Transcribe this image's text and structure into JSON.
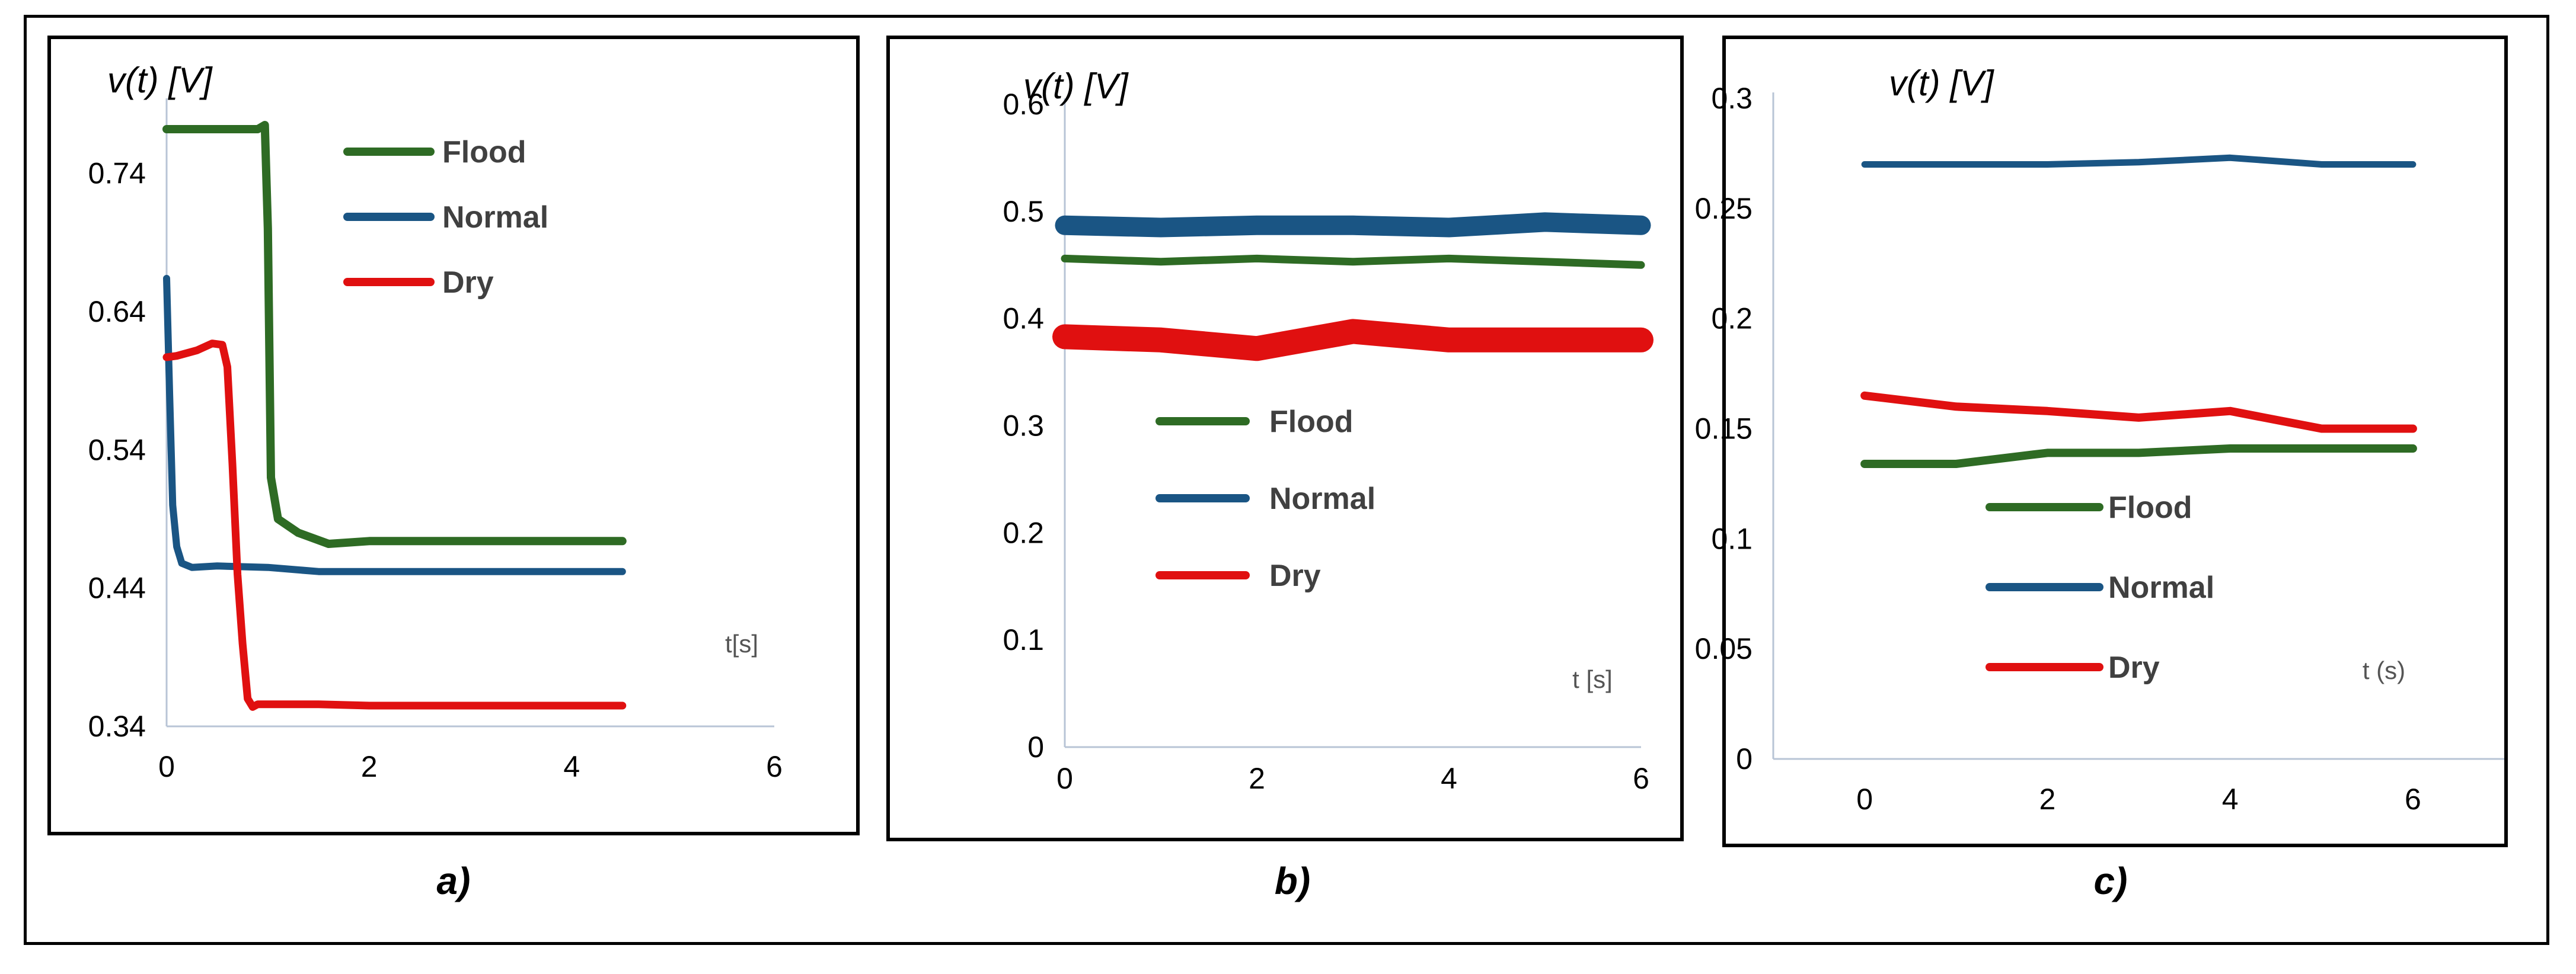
{
  "colors": {
    "flood": "#2e6b24",
    "normal": "#1a5584",
    "dry": "#e01010",
    "axis": "#b8c4d6"
  },
  "captions": [
    "a)",
    "b)",
    "c)"
  ],
  "chart_data": [
    {
      "type": "line",
      "ylabel": "v(t) [V]",
      "xlabel": "t[s]",
      "xlim": [
        0,
        6
      ],
      "ylim": [
        0.34,
        0.79
      ],
      "xticks": [
        "0",
        "2",
        "4",
        "6"
      ],
      "yticks": [
        "0.34",
        "0.44",
        "0.54",
        "0.64",
        "0.74"
      ],
      "legend": [
        "Flood",
        "Normal",
        "Dry"
      ],
      "series": [
        {
          "name": "Flood",
          "x": [
            0,
            0.3,
            0.6,
            0.9,
            0.97,
            1.0,
            1.03,
            1.1,
            1.3,
            1.6,
            2.0,
            3.0,
            4.5
          ],
          "y": [
            0.772,
            0.772,
            0.772,
            0.772,
            0.775,
            0.7,
            0.52,
            0.49,
            0.48,
            0.472,
            0.474,
            0.474,
            0.474
          ]
        },
        {
          "name": "Normal",
          "x": [
            0,
            0.03,
            0.06,
            0.1,
            0.15,
            0.25,
            0.5,
            1.0,
            1.5,
            2.0,
            3.0,
            4.5
          ],
          "y": [
            0.664,
            0.58,
            0.5,
            0.47,
            0.458,
            0.455,
            0.456,
            0.455,
            0.452,
            0.452,
            0.452,
            0.452
          ]
        },
        {
          "name": "Dry",
          "x": [
            0,
            0.1,
            0.3,
            0.45,
            0.55,
            0.6,
            0.65,
            0.7,
            0.75,
            0.8,
            0.85,
            0.9,
            1.5,
            2.0,
            3.0,
            4.5
          ],
          "y": [
            0.607,
            0.608,
            0.612,
            0.617,
            0.616,
            0.6,
            0.53,
            0.45,
            0.4,
            0.36,
            0.354,
            0.356,
            0.356,
            0.355,
            0.355,
            0.355
          ]
        }
      ]
    },
    {
      "type": "line",
      "ylabel": "v(t) [V]",
      "xlabel": "t [s]",
      "xlim": [
        0,
        6
      ],
      "ylim": [
        0,
        0.6
      ],
      "xticks": [
        "0",
        "2",
        "4",
        "6"
      ],
      "yticks": [
        "0",
        "0.1",
        "0.2",
        "0.3",
        "0.4",
        "0.5",
        "0.6"
      ],
      "legend": [
        "Flood",
        "Normal",
        "Dry"
      ],
      "series": [
        {
          "name": "Flood",
          "x": [
            0,
            1,
            2,
            3,
            4,
            5,
            6
          ],
          "y": [
            0.456,
            0.453,
            0.456,
            0.453,
            0.456,
            0.453,
            0.45
          ]
        },
        {
          "name": "Normal",
          "x": [
            0,
            1,
            2,
            3,
            4,
            5,
            6
          ],
          "y": [
            0.487,
            0.485,
            0.487,
            0.487,
            0.485,
            0.49,
            0.487
          ]
        },
        {
          "name": "Dry",
          "x": [
            0,
            1,
            2,
            3,
            4,
            5,
            6
          ],
          "y": [
            0.383,
            0.38,
            0.372,
            0.388,
            0.38,
            0.38,
            0.38
          ]
        }
      ]
    },
    {
      "type": "line",
      "ylabel": "v(t) [V]",
      "xlabel": "t (s)",
      "xlim": [
        -1,
        7
      ],
      "ylim": [
        0,
        0.3
      ],
      "xticks": [
        "0",
        "2",
        "4",
        "6"
      ],
      "yticks": [
        "0",
        "0.05",
        "0.1",
        "0.15",
        "0.2",
        "0.25",
        "0.3"
      ],
      "legend": [
        "Flood",
        "Normal",
        "Dry"
      ],
      "series": [
        {
          "name": "Flood",
          "x": [
            0,
            1,
            2,
            3,
            4,
            5,
            6
          ],
          "y": [
            0.134,
            0.134,
            0.139,
            0.139,
            0.141,
            0.141,
            0.141
          ]
        },
        {
          "name": "Normal",
          "x": [
            0,
            1,
            2,
            3,
            4,
            5,
            6
          ],
          "y": [
            0.27,
            0.27,
            0.27,
            0.271,
            0.273,
            0.27,
            0.27
          ]
        },
        {
          "name": "Dry",
          "x": [
            0,
            1,
            2,
            3,
            4,
            5,
            6
          ],
          "y": [
            0.165,
            0.16,
            0.158,
            0.155,
            0.158,
            0.15,
            0.15
          ]
        }
      ]
    }
  ]
}
